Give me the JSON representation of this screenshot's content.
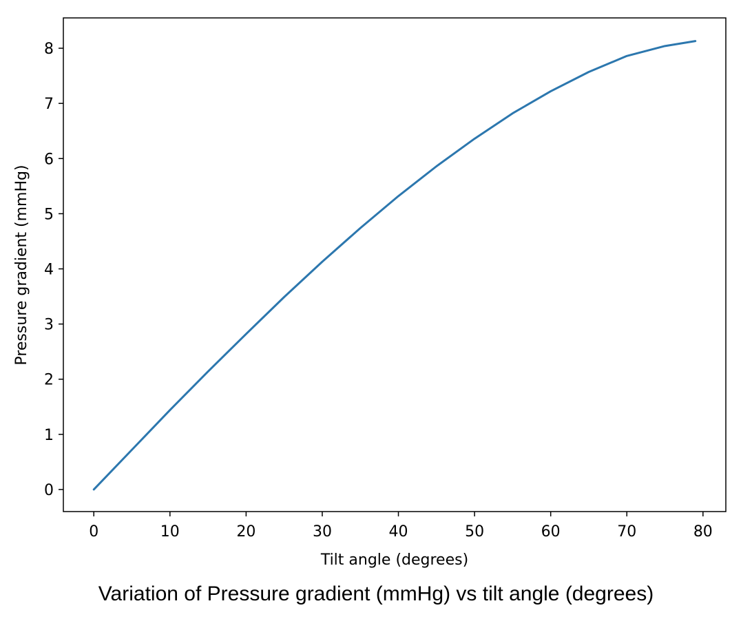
{
  "caption": "Variation of Pressure gradient (mmHg) vs tilt angle (degrees)",
  "colors": {
    "line": "#2c77ae",
    "axes": "#000000",
    "background": "#ffffff"
  },
  "chart_data": {
    "type": "line",
    "title": "",
    "xlabel": "Tilt angle (degrees)",
    "ylabel": "Pressure gradient (mmHg)",
    "xlim": [
      -4,
      83
    ],
    "ylim": [
      -0.4,
      8.55
    ],
    "xticks": [
      0,
      10,
      20,
      30,
      40,
      50,
      60,
      70,
      80
    ],
    "yticks": [
      0,
      1,
      2,
      3,
      4,
      5,
      6,
      7,
      8
    ],
    "grid": false,
    "legend": "none",
    "series": [
      {
        "x": [
          0,
          5,
          10,
          15,
          20,
          25,
          30,
          35,
          40,
          45,
          50,
          55,
          60,
          65,
          70,
          75,
          79
        ],
        "y": [
          0,
          0.72,
          1.44,
          2.14,
          2.82,
          3.49,
          4.13,
          4.74,
          5.32,
          5.86,
          6.36,
          6.82,
          7.22,
          7.57,
          7.86,
          8.04,
          8.13
        ]
      }
    ]
  }
}
